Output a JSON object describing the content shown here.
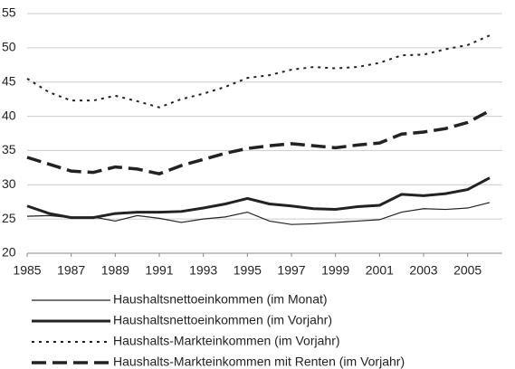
{
  "chart_data": {
    "type": "line",
    "x": [
      1985,
      1986,
      1987,
      1988,
      1989,
      1990,
      1991,
      1992,
      1993,
      1994,
      1995,
      1996,
      1997,
      1998,
      1999,
      2000,
      2001,
      2002,
      2003,
      2004,
      2005,
      2006
    ],
    "xlim": [
      1985,
      2006
    ],
    "xticks": [
      1985,
      1987,
      1989,
      1991,
      1993,
      1995,
      1997,
      1999,
      2001,
      2003,
      2005
    ],
    "ylim": [
      20,
      55
    ],
    "yticks": [
      20,
      25,
      30,
      35,
      40,
      45,
      50,
      55
    ],
    "grid": true,
    "series": [
      {
        "name": "Haushaltsnettoeinkommen (im Monat)",
        "color": "#222222",
        "width": 1.2,
        "dash": "solid",
        "values": [
          25.4,
          25.5,
          25.2,
          25.3,
          24.7,
          25.5,
          25.1,
          24.5,
          25.0,
          25.3,
          26.0,
          24.7,
          24.2,
          24.3,
          24.5,
          24.7,
          24.9,
          26.0,
          26.5,
          26.4,
          26.6,
          27.4
        ]
      },
      {
        "name": "Haushaltsnettoeinkommen (im Vorjahr)",
        "color": "#222222",
        "width": 3,
        "dash": "solid",
        "values": [
          26.9,
          25.8,
          25.2,
          25.2,
          25.8,
          26.0,
          26.0,
          26.1,
          26.6,
          27.2,
          28.0,
          27.2,
          26.9,
          26.5,
          26.4,
          26.8,
          27.0,
          28.6,
          28.4,
          28.7,
          29.3,
          31.0
        ]
      },
      {
        "name": "Haushalts-Markteinkommen (im Vorjahr)",
        "color": "#222222",
        "width": 2,
        "dash": "dotted",
        "values": [
          45.5,
          43.5,
          42.3,
          42.3,
          43.0,
          42.2,
          41.3,
          42.5,
          43.3,
          44.3,
          45.6,
          46.0,
          46.8,
          47.2,
          47.0,
          47.2,
          47.8,
          48.9,
          49.0,
          49.8,
          50.4,
          51.8
        ]
      },
      {
        "name": "Haushalts-Markteinkommen mit Renten (im Vorjahr)",
        "color": "#222222",
        "width": 3.5,
        "dash": "dashed",
        "values": [
          34.0,
          33.0,
          32.0,
          31.8,
          32.6,
          32.3,
          31.6,
          32.8,
          33.7,
          34.6,
          35.3,
          35.7,
          36.0,
          35.7,
          35.4,
          35.8,
          36.1,
          37.4,
          37.7,
          38.2,
          39.1,
          40.8
        ]
      }
    ]
  }
}
